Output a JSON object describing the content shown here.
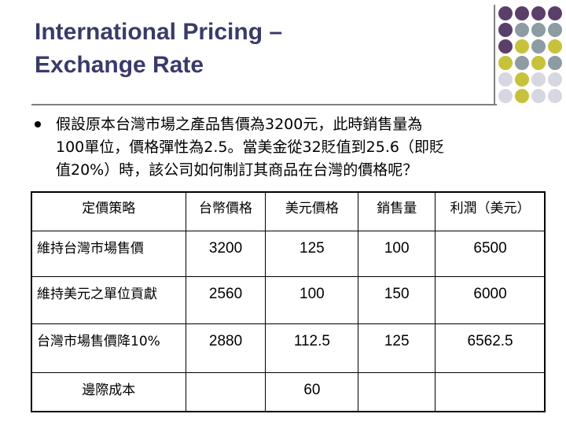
{
  "title": {
    "line1": "International Pricing –",
    "line2": "Exchange Rate"
  },
  "bullet": {
    "line1": "假設原本台灣市場之產品售價為3200元，此時銷售量為",
    "line2": "100單位，價格彈性為2.5。當美金從32貶值到25.6（即貶",
    "line3": "值20%）時，該公司如何制訂其商品在台灣的價格呢？"
  },
  "table": {
    "headers": [
      "定價策略",
      "台幣價格",
      "美元價格",
      "銷售量",
      "利潤（美元）"
    ],
    "rows": [
      {
        "strategy": "維持台灣市場售價",
        "twd": "3200",
        "usd": "125",
        "qty": "100",
        "profit": "6500"
      },
      {
        "strategy": "維持美元之單位貢獻",
        "twd": "2560",
        "usd": "100",
        "qty": "150",
        "profit": "6000"
      },
      {
        "strategy": "台灣市場售價降10%",
        "twd": "2880",
        "usd": "112.5",
        "qty": "125",
        "profit": "6562.5"
      }
    ],
    "footer": {
      "label": "邊際成本",
      "usd": "60"
    }
  },
  "decor": {
    "dot_colors": {
      "purple": "#5b3f6b",
      "gray": "#8d9ba3",
      "yellow": "#c6c23a",
      "light": "#d7d7e2"
    }
  }
}
